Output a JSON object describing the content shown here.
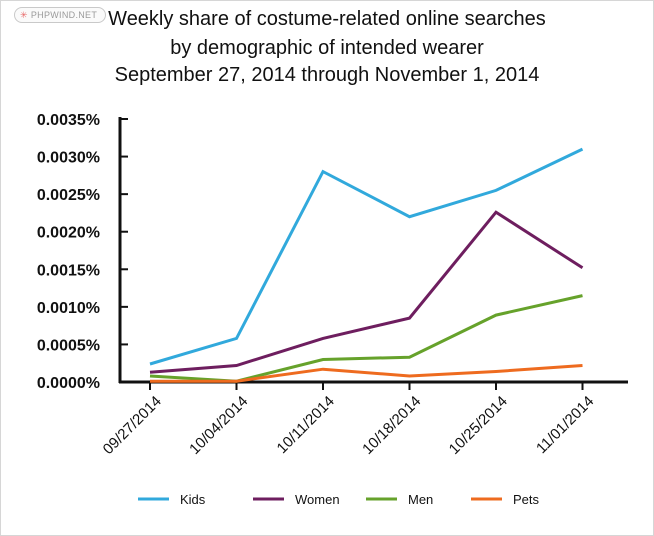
{
  "watermark": {
    "icon": "asterisk-icon",
    "text": "PHPWIND.NET"
  },
  "chart_data": {
    "type": "line",
    "title": "Weekly share of costume-related online searches",
    "subtitle": "by demographic of intended wearer",
    "date_range": "September 27, 2014 through November 1, 2014",
    "xlabel": "",
    "ylabel": "",
    "categories": [
      "09/27/2014",
      "10/04/2014",
      "10/11/2014",
      "10/18/2014",
      "10/25/2014",
      "11/01/2014"
    ],
    "ylim": [
      0,
      0.0035
    ],
    "y_ticks": [
      0,
      0.0005,
      0.001,
      0.0015,
      0.002,
      0.0025,
      0.003,
      0.0035
    ],
    "y_tick_labels": [
      "0.0000%",
      "0.0005%",
      "0.0010%",
      "0.0015%",
      "0.0020%",
      "0.0025%",
      "0.0030%",
      "0.0035%"
    ],
    "grid": false,
    "legend_position": "bottom",
    "series": [
      {
        "name": "Kids",
        "color": "#31a9dc",
        "values": [
          0.00024,
          0.00058,
          0.0028,
          0.0022,
          0.00255,
          0.0031
        ]
      },
      {
        "name": "Women",
        "color": "#6e1e5f",
        "values": [
          0.00013,
          0.00022,
          0.00058,
          0.00085,
          0.00226,
          0.00152
        ]
      },
      {
        "name": "Men",
        "color": "#66a22b",
        "values": [
          8e-05,
          1e-05,
          0.0003,
          0.00033,
          0.00089,
          0.00115
        ]
      },
      {
        "name": "Pets",
        "color": "#ee6b1f",
        "values": [
          1e-05,
          1e-05,
          0.00017,
          8e-05,
          0.00014,
          0.00022
        ]
      }
    ]
  }
}
